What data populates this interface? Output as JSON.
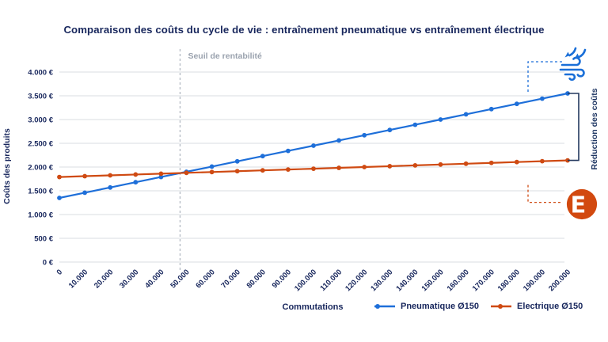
{
  "title": "Comparaison des coûts du cycle de vie : entraînement pneumatique vs entraînement électrique",
  "chart_data": {
    "type": "line",
    "title": "Comparaison des coûts du cycle de vie : entraînement pneumatique vs entraînement électrique",
    "xlabel": "Commutations",
    "ylabel": "Coûts des produits",
    "x": [
      0,
      10000,
      20000,
      30000,
      40000,
      50000,
      60000,
      70000,
      80000,
      90000,
      100000,
      110000,
      120000,
      130000,
      140000,
      150000,
      160000,
      170000,
      180000,
      190000,
      200000
    ],
    "x_tick_labels": [
      "0",
      "10.000",
      "20.000",
      "30.000",
      "40.000",
      "50.000",
      "60.000",
      "70.000",
      "80.000",
      "90.000",
      "100.000",
      "110.000",
      "120.000",
      "130.000",
      "140.000",
      "150.000",
      "160.000",
      "170.000",
      "180.000",
      "190.000",
      "200.000"
    ],
    "xlim": [
      0,
      200000
    ],
    "y_ticks": [
      0,
      500,
      1000,
      1500,
      2000,
      2500,
      3000,
      3500,
      4000
    ],
    "y_tick_labels": [
      "0 €",
      "500 €",
      "1.000 €",
      "1.500 €",
      "2.000 €",
      "2.500 €",
      "3.000 €",
      "3.500 €",
      "4.000 €"
    ],
    "ylim": [
      0,
      4000
    ],
    "grid": true,
    "legend_position": "bottom",
    "series": [
      {
        "name": "Pneumatique Ø150",
        "color": "#1e6fd9",
        "values": [
          1350,
          1460,
          1570,
          1680,
          1790,
          1900,
          2010,
          2120,
          2230,
          2340,
          2450,
          2560,
          2670,
          2780,
          2890,
          3000,
          3110,
          3220,
          3330,
          3440,
          3550
        ]
      },
      {
        "name": "Electrique Ø150",
        "color": "#cf4a12",
        "values": [
          1790,
          1808,
          1825,
          1843,
          1860,
          1878,
          1895,
          1913,
          1930,
          1948,
          1965,
          1983,
          2000,
          2018,
          2035,
          2053,
          2070,
          2088,
          2105,
          2123,
          2140
        ]
      }
    ],
    "breakeven": {
      "label": "Seuil de rentabilité",
      "x": 47500
    },
    "cost_reduction_label": "Réduction des coûts"
  },
  "icons": {
    "pneumatic": "compressed-air-icon",
    "electric": "electric-motor-icon"
  },
  "colors": {
    "pneumatic": "#1e6fd9",
    "electric": "#cf4a12",
    "navy": "#17265c",
    "grid": "#d9dce2",
    "muted": "#9aa2ae",
    "bracket": "#24395f",
    "icon_blue": "#1a6fd8",
    "icon_orange": "#d2490f"
  }
}
